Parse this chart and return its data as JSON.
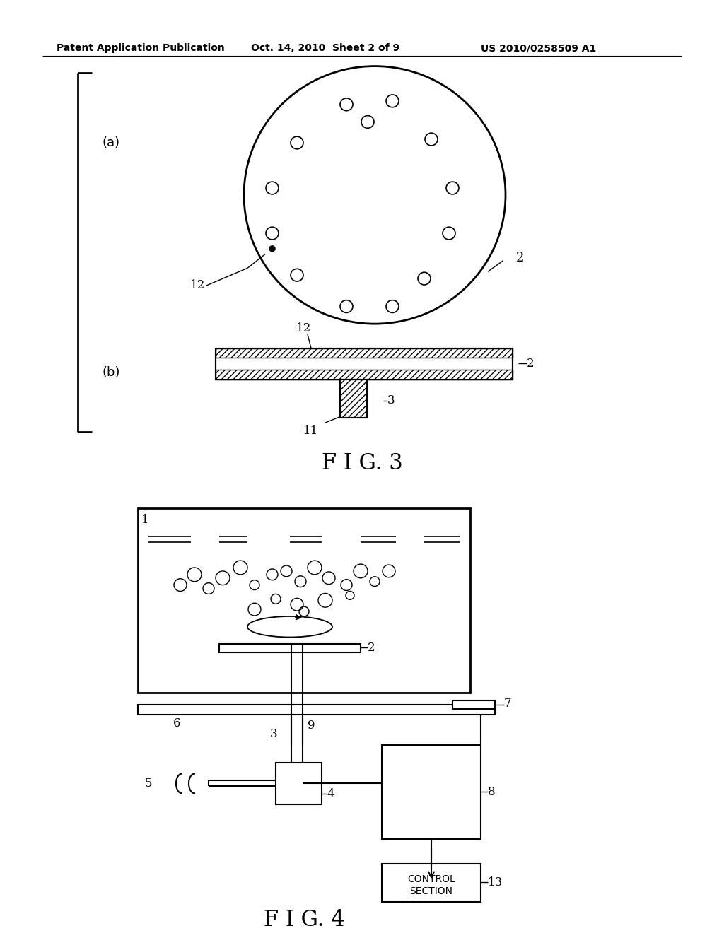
{
  "header_left": "Patent Application Publication",
  "header_center": "Oct. 14, 2010  Sheet 2 of 9",
  "header_right": "US 2010/0258509 A1",
  "fig3_label": "F I G. 3",
  "fig4_label": "F I G. 4",
  "label_a": "(a)",
  "label_b": "(b)",
  "bg_color": "#ffffff",
  "line_color": "#000000"
}
